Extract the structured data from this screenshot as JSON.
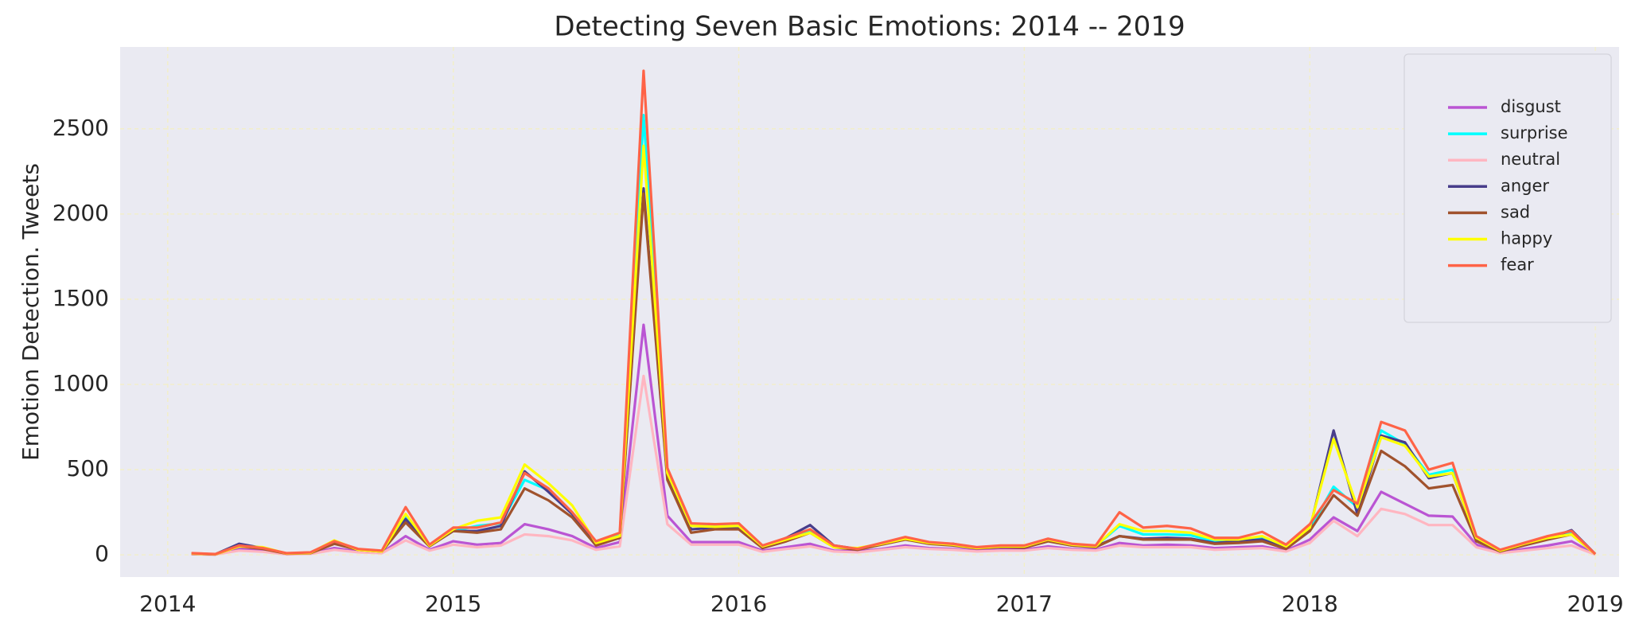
{
  "chart_data": {
    "type": "line",
    "title": "Detecting Seven Basic Emotions: 2014 -- 2019",
    "ylabel": "Emotion Detection. Tweets",
    "x": [
      "2014-02",
      "2014-03",
      "2014-04",
      "2014-05",
      "2014-06",
      "2014-07",
      "2014-08",
      "2014-09",
      "2014-10",
      "2014-11",
      "2014-12",
      "2015-01",
      "2015-02",
      "2015-03",
      "2015-04",
      "2015-05",
      "2015-06",
      "2015-07",
      "2015-08",
      "2015-09",
      "2015-10",
      "2015-11",
      "2015-12",
      "2016-01",
      "2016-02",
      "2016-03",
      "2016-04",
      "2016-05",
      "2016-06",
      "2016-07",
      "2016-08",
      "2016-09",
      "2016-10",
      "2016-11",
      "2016-12",
      "2017-01",
      "2017-02",
      "2017-03",
      "2017-04",
      "2017-05",
      "2017-06",
      "2017-07",
      "2017-08",
      "2017-09",
      "2017-10",
      "2017-11",
      "2017-12",
      "2018-01",
      "2018-02",
      "2018-03",
      "2018-04",
      "2018-05",
      "2018-06",
      "2018-07",
      "2018-08",
      "2018-09",
      "2018-10",
      "2018-11",
      "2018-12",
      "2019-01"
    ],
    "series": [
      {
        "name": "disgust",
        "color": "#ba55d3",
        "values": [
          5,
          2,
          35,
          25,
          4,
          8,
          40,
          20,
          12,
          110,
          30,
          80,
          60,
          70,
          180,
          150,
          110,
          40,
          75,
          1350,
          230,
          75,
          75,
          75,
          25,
          45,
          65,
          25,
          20,
          35,
          55,
          40,
          35,
          25,
          30,
          30,
          50,
          35,
          30,
          70,
          55,
          60,
          55,
          40,
          45,
          50,
          25,
          90,
          220,
          140,
          370,
          300,
          230,
          225,
          60,
          12,
          35,
          55,
          80,
          3
        ]
      },
      {
        "name": "surprise",
        "color": "#00ffff",
        "values": [
          8,
          4,
          50,
          38,
          8,
          12,
          78,
          30,
          20,
          230,
          55,
          140,
          170,
          185,
          440,
          380,
          240,
          70,
          115,
          2580,
          470,
          170,
          170,
          170,
          50,
          90,
          140,
          50,
          35,
          65,
          100,
          70,
          60,
          42,
          52,
          52,
          90,
          60,
          52,
          170,
          120,
          120,
          115,
          80,
          80,
          100,
          45,
          150,
          400,
          280,
          730,
          650,
          470,
          500,
          100,
          25,
          65,
          100,
          125,
          5
        ]
      },
      {
        "name": "neutral",
        "color": "#ffb6c1",
        "values": [
          4,
          2,
          25,
          18,
          3,
          6,
          30,
          15,
          10,
          85,
          25,
          60,
          45,
          55,
          120,
          110,
          85,
          30,
          50,
          1050,
          180,
          60,
          60,
          60,
          18,
          35,
          50,
          20,
          15,
          30,
          45,
          35,
          30,
          20,
          25,
          25,
          40,
          30,
          25,
          55,
          45,
          45,
          45,
          30,
          35,
          40,
          20,
          70,
          200,
          110,
          270,
          240,
          175,
          175,
          45,
          10,
          25,
          40,
          55,
          2
        ]
      },
      {
        "name": "anger",
        "color": "#483d8b",
        "values": [
          8,
          4,
          65,
          40,
          8,
          12,
          70,
          30,
          20,
          210,
          55,
          140,
          140,
          170,
          490,
          370,
          240,
          60,
          110,
          2150,
          450,
          150,
          160,
          165,
          45,
          100,
          175,
          55,
          35,
          65,
          95,
          70,
          65,
          40,
          50,
          45,
          85,
          55,
          50,
          110,
          95,
          100,
          95,
          70,
          80,
          90,
          40,
          150,
          730,
          240,
          700,
          660,
          450,
          480,
          95,
          25,
          60,
          95,
          145,
          5
        ]
      },
      {
        "name": "sad",
        "color": "#a0522d",
        "values": [
          7,
          3,
          50,
          35,
          7,
          10,
          65,
          30,
          20,
          190,
          50,
          140,
          130,
          150,
          390,
          320,
          220,
          55,
          100,
          2120,
          440,
          130,
          150,
          150,
          40,
          80,
          130,
          45,
          30,
          60,
          90,
          65,
          55,
          38,
          45,
          42,
          80,
          55,
          45,
          110,
          90,
          90,
          90,
          65,
          70,
          80,
          35,
          140,
          350,
          230,
          610,
          520,
          390,
          410,
          80,
          20,
          55,
          90,
          120,
          5
        ]
      },
      {
        "name": "happy",
        "color": "#ffff00",
        "values": [
          8,
          4,
          50,
          45,
          8,
          12,
          85,
          30,
          20,
          240,
          55,
          150,
          200,
          220,
          530,
          420,
          290,
          70,
          110,
          2400,
          480,
          170,
          165,
          170,
          50,
          90,
          130,
          45,
          40,
          65,
          95,
          70,
          60,
          40,
          50,
          50,
          90,
          60,
          50,
          180,
          140,
          140,
          130,
          90,
          90,
          110,
          50,
          160,
          680,
          280,
          690,
          640,
          460,
          480,
          100,
          25,
          65,
          100,
          120,
          5
        ]
      },
      {
        "name": "fear",
        "color": "#ff6347",
        "values": [
          10,
          5,
          55,
          40,
          10,
          15,
          80,
          35,
          25,
          280,
          60,
          160,
          160,
          190,
          480,
          390,
          250,
          80,
          130,
          2840,
          510,
          185,
          180,
          185,
          55,
          100,
          150,
          55,
          35,
          70,
          105,
          75,
          65,
          45,
          55,
          55,
          95,
          65,
          55,
          250,
          160,
          170,
          155,
          100,
          100,
          135,
          60,
          180,
          380,
          300,
          780,
          730,
          500,
          540,
          110,
          30,
          70,
          110,
          140,
          5
        ]
      }
    ],
    "xlim": [
      "2013-11",
      "2019-02"
    ],
    "xticks": [
      2014,
      2015,
      2016,
      2017,
      2018,
      2019
    ],
    "ylim": [
      -130,
      2980
    ],
    "yticks": [
      0,
      500,
      1000,
      1500,
      2000,
      2500
    ],
    "grid": true,
    "legend": "upper right"
  }
}
